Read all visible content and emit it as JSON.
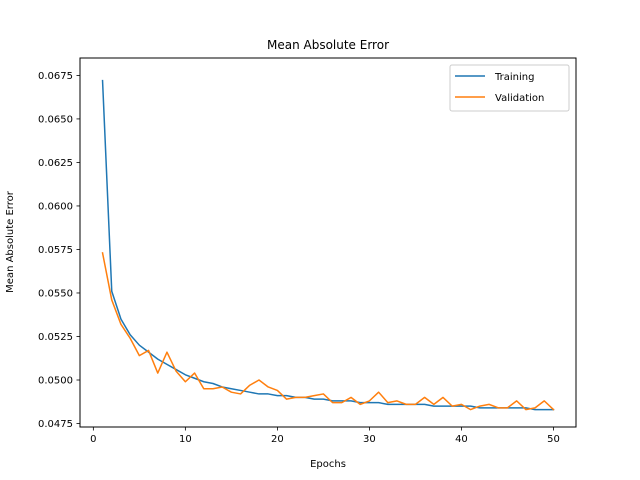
{
  "chart_data": {
    "type": "line",
    "title": "Mean Absolute Error",
    "xlabel": "Epochs",
    "ylabel": "Mean Absolute Error",
    "xlim": [
      -1.45,
      52.45
    ],
    "ylim": [
      0.0473,
      0.0685
    ],
    "xticks": [
      0,
      10,
      20,
      30,
      40,
      50
    ],
    "xtick_labels": [
      "0",
      "10",
      "20",
      "30",
      "40",
      "50"
    ],
    "yticks": [
      0.0475,
      0.05,
      0.0525,
      0.055,
      0.0575,
      0.06,
      0.0625,
      0.065,
      0.0675
    ],
    "ytick_labels": [
      "0.0475",
      "0.0500",
      "0.0525",
      "0.0550",
      "0.0575",
      "0.0600",
      "0.0625",
      "0.0650",
      "0.0675"
    ],
    "grid": false,
    "legend_position": "upper right",
    "x": [
      1,
      2,
      3,
      4,
      5,
      6,
      7,
      8,
      9,
      10,
      11,
      12,
      13,
      14,
      15,
      16,
      17,
      18,
      19,
      20,
      21,
      22,
      23,
      24,
      25,
      26,
      27,
      28,
      29,
      30,
      31,
      32,
      33,
      34,
      35,
      36,
      37,
      38,
      39,
      40,
      41,
      42,
      43,
      44,
      45,
      46,
      47,
      48,
      49,
      50
    ],
    "series": [
      {
        "name": "Training",
        "color": "#1f77b4",
        "values": [
          0.0672,
          0.0551,
          0.0535,
          0.0526,
          0.052,
          0.0516,
          0.0512,
          0.0509,
          0.0506,
          0.0503,
          0.0501,
          0.0499,
          0.0498,
          0.0496,
          0.0495,
          0.0494,
          0.0493,
          0.0492,
          0.0492,
          0.0491,
          0.0491,
          0.049,
          0.049,
          0.0489,
          0.0489,
          0.0488,
          0.0488,
          0.0488,
          0.0487,
          0.0487,
          0.0487,
          0.0486,
          0.0486,
          0.0486,
          0.0486,
          0.0486,
          0.0485,
          0.0485,
          0.0485,
          0.0485,
          0.0485,
          0.0484,
          0.0484,
          0.0484,
          0.0484,
          0.0484,
          0.0484,
          0.0483,
          0.0483,
          0.0483
        ]
      },
      {
        "name": "Validation",
        "color": "#ff7f0e",
        "values": [
          0.0573,
          0.0546,
          0.0532,
          0.0524,
          0.0514,
          0.0517,
          0.0504,
          0.0516,
          0.0505,
          0.0499,
          0.0504,
          0.0495,
          0.0495,
          0.0496,
          0.0493,
          0.0492,
          0.0497,
          0.05,
          0.0496,
          0.0494,
          0.0489,
          0.049,
          0.049,
          0.0491,
          0.0492,
          0.0487,
          0.0487,
          0.049,
          0.0486,
          0.0488,
          0.0493,
          0.0487,
          0.0488,
          0.0486,
          0.0486,
          0.049,
          0.0486,
          0.049,
          0.0485,
          0.0486,
          0.0483,
          0.0485,
          0.0486,
          0.0484,
          0.0484,
          0.0488,
          0.0483,
          0.0484,
          0.0488,
          0.0483
        ]
      }
    ]
  }
}
